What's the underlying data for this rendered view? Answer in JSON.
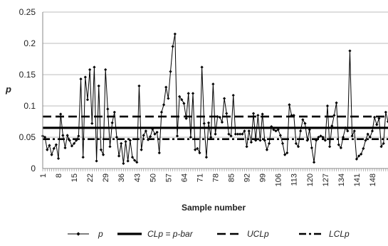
{
  "chart_data": {
    "type": "line",
    "xlabel": "Sample number",
    "ylabel": "p",
    "ylim": [
      0,
      0.25
    ],
    "yticks": [
      0,
      0.05,
      0.1,
      0.15,
      0.2,
      0.25
    ],
    "ytick_labels": [
      "0",
      "0.05",
      "0.1",
      "0.15",
      "0.2",
      "0.25"
    ],
    "x_range": [
      1,
      155
    ],
    "xtick_labels": [
      "1",
      "8",
      "15",
      "22",
      "29",
      "36",
      "43",
      "50",
      "57",
      "64",
      "71",
      "78",
      "85",
      "92",
      "99",
      "106",
      "113",
      "120",
      "127",
      "134",
      "141",
      "148"
    ],
    "grid": "horizontal",
    "legend_position": "bottom",
    "series": [
      {
        "name": "p",
        "style": "line-diamond",
        "color": "#000000",
        "values": [
          0.052,
          0.05,
          0.03,
          0.037,
          0.022,
          0.032,
          0.038,
          0.016,
          0.087,
          0.053,
          0.033,
          0.053,
          0.045,
          0.036,
          0.04,
          0.045,
          0.052,
          0.143,
          0.018,
          0.146,
          0.11,
          0.158,
          0.072,
          0.162,
          0.012,
          0.132,
          0.03,
          0.022,
          0.158,
          0.095,
          0.035,
          0.073,
          0.09,
          0.05,
          0.02,
          0.04,
          0.008,
          0.043,
          0.012,
          0.045,
          0.018,
          0.013,
          0.01,
          0.132,
          0.03,
          0.053,
          0.06,
          0.046,
          0.051,
          0.063,
          0.055,
          0.058,
          0.025,
          0.09,
          0.102,
          0.13,
          0.112,
          0.155,
          0.195,
          0.215,
          0.052,
          0.115,
          0.11,
          0.104,
          0.08,
          0.12,
          0.05,
          0.12,
          0.03,
          0.032,
          0.025,
          0.162,
          0.072,
          0.018,
          0.073,
          0.05,
          0.135,
          0.055,
          0.083,
          0.082,
          0.074,
          0.112,
          0.088,
          0.055,
          0.052,
          0.117,
          0.055,
          0.055,
          0.055,
          0.055,
          0.06,
          0.035,
          0.06,
          0.042,
          0.088,
          0.045,
          0.085,
          0.045,
          0.087,
          0.045,
          0.03,
          0.04,
          0.067,
          0.062,
          0.06,
          0.062,
          0.053,
          0.04,
          0.022,
          0.025,
          0.102,
          0.085,
          0.085,
          0.04,
          0.035,
          0.06,
          0.078,
          0.072,
          0.045,
          0.062,
          0.033,
          0.01,
          0.045,
          0.05,
          0.052,
          0.05,
          0.045,
          0.1,
          0.035,
          0.068,
          0.085,
          0.105,
          0.038,
          0.033,
          0.05,
          0.065,
          0.06,
          0.188,
          0.052,
          0.06,
          0.015,
          0.02,
          0.023,
          0.032,
          0.045,
          0.055,
          0.05,
          0.06,
          0.082,
          0.07,
          0.08,
          0.035,
          0.04,
          0.09,
          0.075,
          0.055
        ]
      },
      {
        "name": "CLp = p-bar",
        "style": "solid-thick",
        "color": "#000000",
        "value": 0.065
      },
      {
        "name": "UCLp",
        "style": "dashed",
        "color": "#000000",
        "value": 0.083
      },
      {
        "name": "LCLp",
        "style": "dash-dot",
        "color": "#000000",
        "value": 0.047
      }
    ]
  }
}
